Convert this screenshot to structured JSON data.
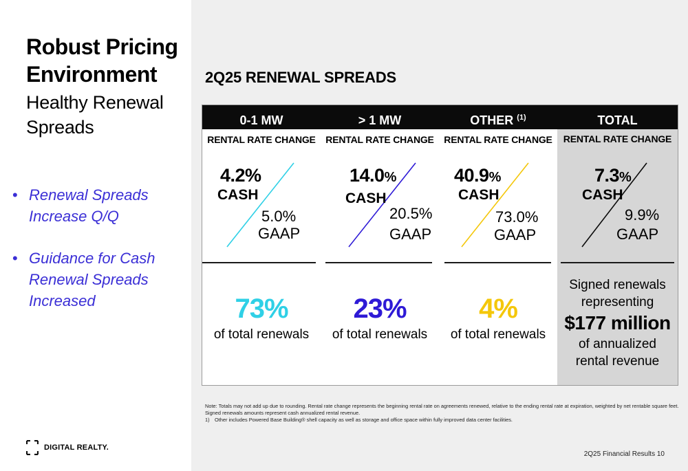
{
  "left": {
    "title": "Robust Pricing Environment",
    "subtitle": "Healthy Renewal Spreads",
    "bullets": [
      "Renewal Spreads Increase Q/Q",
      "Guidance for Cash Renewal Spreads Increased"
    ],
    "bullet_marker": "•",
    "logo_text": "DIGITAL REALTY."
  },
  "section_title": "2Q25 RENEWAL SPREADS",
  "colors": {
    "col1": "#2fd0e6",
    "col2": "#2e1ad6",
    "col3": "#f4c70a",
    "total": "#0b0b0b",
    "bullet_text": "#3b2fd6"
  },
  "columns": [
    {
      "header": "0-1 MW",
      "header_sup": "",
      "sub": "RENTAL RATE CHANGE",
      "cash_value": "4.2%",
      "cash_unit": "",
      "cash_label": "CASH",
      "gaap_value": "5.0%",
      "gaap_label": "GAAP",
      "share": "73%",
      "share_note": "of total renewals"
    },
    {
      "header": "> 1 MW",
      "header_sup": "",
      "sub": "RENTAL RATE CHANGE",
      "cash_value": "14.0",
      "cash_unit": "%",
      "cash_label": "CASH",
      "gaap_value": "20.5%",
      "gaap_label": "GAAP",
      "share": "23%",
      "share_note": "of total renewals"
    },
    {
      "header": "OTHER ",
      "header_sup": "(1)",
      "sub": "RENTAL RATE CHANGE",
      "cash_value": "40.9",
      "cash_unit": "%",
      "cash_label": "CASH",
      "gaap_value": "73.0%",
      "gaap_label": "GAAP",
      "share": "4%",
      "share_note": "of total renewals"
    },
    {
      "header": "TOTAL",
      "header_sup": "",
      "sub": "RENTAL RATE CHANGE",
      "cash_value": "7.3",
      "cash_unit": "%",
      "cash_label": "CASH",
      "gaap_value": "9.9%",
      "gaap_label": "GAAP",
      "note_line1": "Signed renewals",
      "note_line2": "representing",
      "amount": "$177 million",
      "note_line3": "of annualized",
      "note_line4": "rental revenue"
    }
  ],
  "footnotes": {
    "note": "Note:  Totals may not add up due to rounding. Rental rate change represents the beginning rental rate on agreements renewed, relative to the ending rental rate at expiration, weighted by net rentable square feet. Signed renewals amounts represent cash annualized rental revenue.",
    "fn1_num": "1)",
    "fn1_text": "Other includes Powered Base Building® shell capacity as well as storage and office space within fully improved data center facilities."
  },
  "footer": "2Q25 Financial Results 10"
}
